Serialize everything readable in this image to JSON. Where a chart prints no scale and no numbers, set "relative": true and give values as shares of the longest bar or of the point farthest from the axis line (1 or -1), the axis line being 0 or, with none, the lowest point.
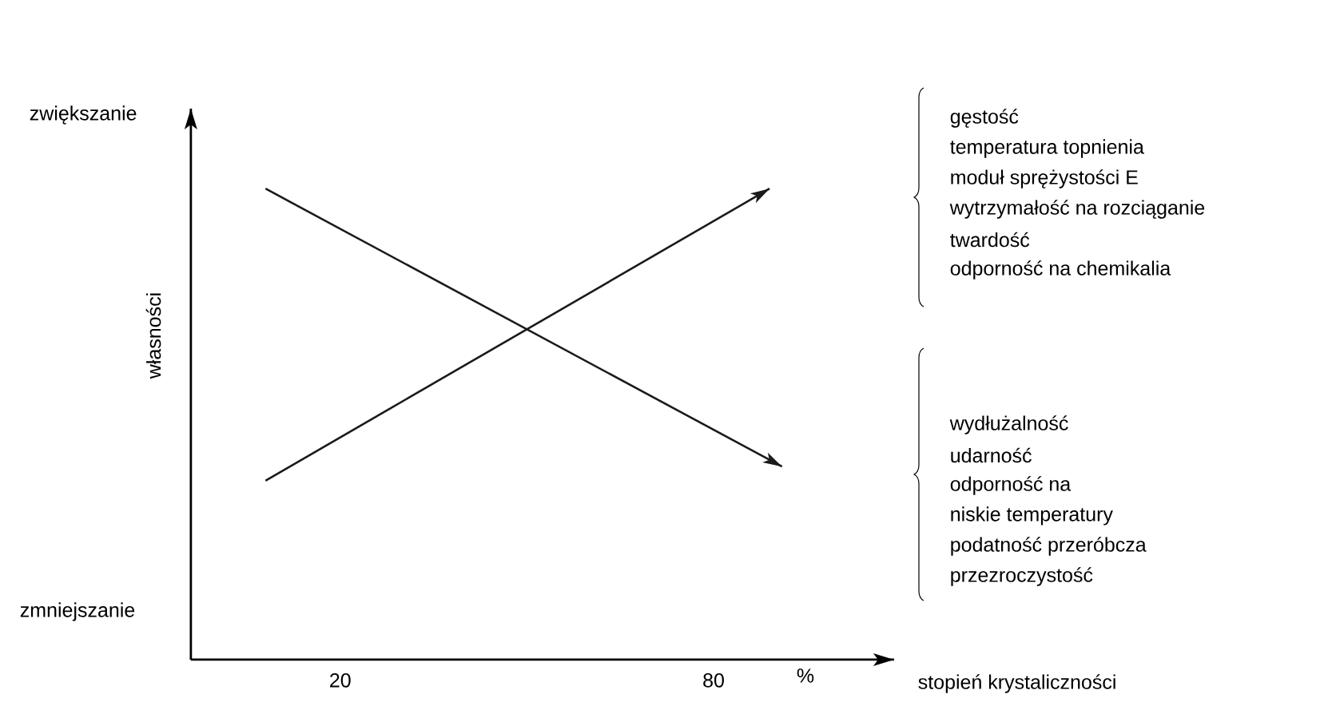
{
  "chart_data": {
    "type": "line",
    "relative": true,
    "xlabel": "stopień krystaliczności",
    "ylabel": "własności",
    "xlim": [
      -4,
      109
    ],
    "xticks": [
      20,
      80
    ],
    "series": [
      {
        "color": "#1a1a1a",
        "x": [
          8,
          89
        ],
        "values": [
          0.38,
          1.0
        ]
      },
      {
        "color": "#1a1a1a",
        "x": [
          8,
          91
        ],
        "values": [
          1.0,
          0.41
        ]
      }
    ],
    "annotations": [
      "zwiększanie",
      "zmniejszanie",
      "%",
      "gęstość",
      "temperatura topnienia",
      "moduł sprężystości E",
      "wytrzymałość na rozciąganie",
      "twardość",
      "odporność na chemikalia",
      "wydłużalność",
      "udarność",
      "odporność na",
      "niskie temperatury",
      "podatność przeróbcza",
      "przezroczystość"
    ]
  }
}
